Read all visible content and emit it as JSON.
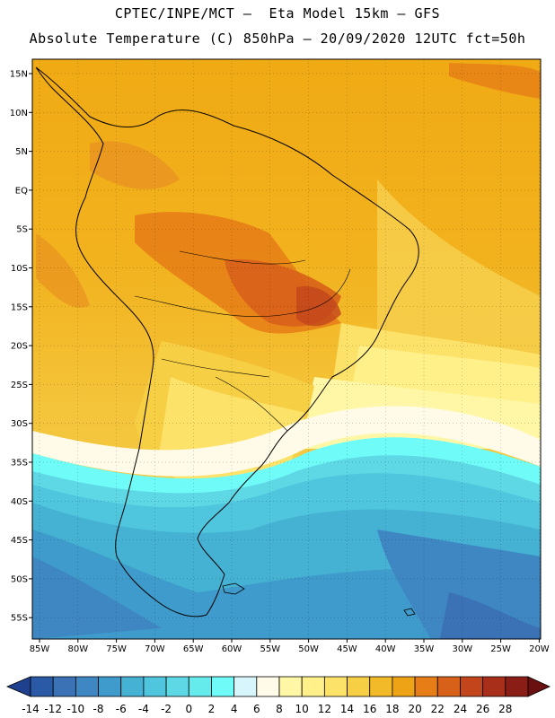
{
  "title": {
    "line1": "CPTEC/INPE/MCT –  Eta Model 15km – GFS",
    "line2": "Absolute Temperature (C) 850hPa – 20/09/2020 12UTC fct=50h"
  },
  "map": {
    "lat_labels": [
      "15N",
      "10N",
      "5N",
      "EQ",
      "5S",
      "10S",
      "15S",
      "20S",
      "25S",
      "30S",
      "35S",
      "40S",
      "45S",
      "50S",
      "55S"
    ],
    "lon_labels": [
      "85W",
      "80W",
      "75W",
      "70W",
      "65W",
      "60W",
      "55W",
      "50W",
      "45W",
      "40W",
      "35W",
      "30W",
      "25W",
      "20W"
    ]
  },
  "colorbar": {
    "labels": [
      "-14",
      "-12",
      "-10",
      "-8",
      "-6",
      "-4",
      "-2",
      "0",
      "2",
      "4",
      "6",
      "8",
      "10",
      "12",
      "14",
      "16",
      "18",
      "20",
      "22",
      "24",
      "26",
      "28"
    ],
    "colors": [
      "#1f3f8f",
      "#2a5aa5",
      "#3a72b5",
      "#3f87c3",
      "#3f9bcb",
      "#45b1d3",
      "#4fc6dd",
      "#5fd8e6",
      "#66ebed",
      "#6ffbf7",
      "#d6f6fb",
      "#fffbe8",
      "#fff7a6",
      "#fff08a",
      "#fde26a",
      "#f7cf45",
      "#f2b928",
      "#eea317",
      "#e67d16",
      "#d8611a",
      "#c2451b",
      "#a8301a",
      "#8a1e16",
      "#6a1010"
    ]
  }
}
